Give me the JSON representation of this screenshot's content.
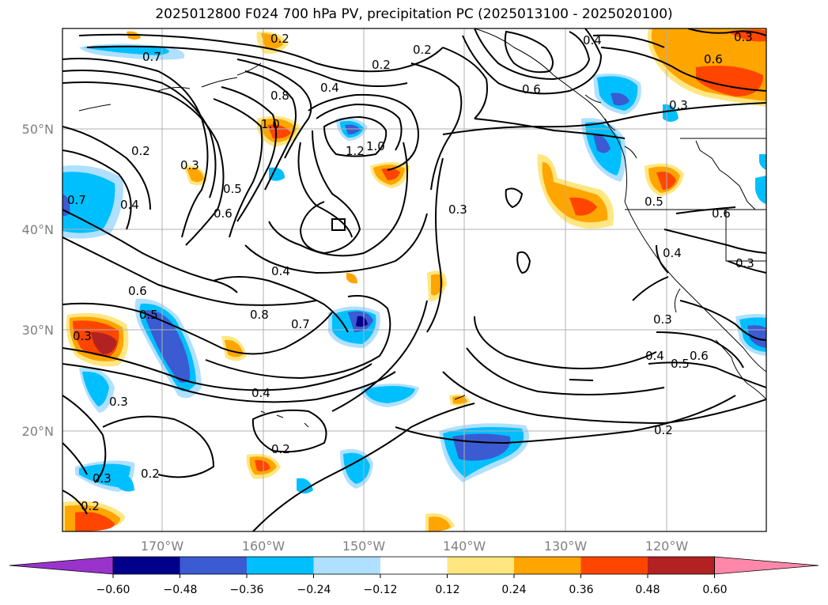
{
  "title": "2025012800 F024 700 hPa PV, precipitation PC (2025013100 - 2025020100)",
  "lat_ticks": [
    "50°N",
    "40°N",
    "30°N",
    "20°N"
  ],
  "lon_ticks": [
    "170°W",
    "160°W",
    "150°W",
    "140°W",
    "130°W",
    "120°W"
  ],
  "contour_labels": [
    "0.7",
    "0.2",
    "0.2",
    "0.4",
    "0.4",
    "0.8",
    "1.0",
    "1.2",
    "1.0",
    "0.2",
    "0.3",
    "0.5",
    "0.6",
    "0.4",
    "0.7",
    "0.3",
    "0.6",
    "0.5",
    "0.4",
    "0.8",
    "0.7",
    "0.6",
    "0.3",
    "0.4",
    "0.2",
    "0.3",
    "0.2",
    "0.2",
    "0.2",
    "0.3",
    "0.4",
    "0.5",
    "0.6",
    "0.3",
    "0.4",
    "0.5",
    "0.6",
    "0.3",
    "0.3",
    "0.3",
    "0.6",
    "0.2"
  ],
  "colorbar": {
    "ticks": [
      "−0.60",
      "−0.48",
      "−0.36",
      "−0.24",
      "−0.12",
      "0.12",
      "0.24",
      "0.36",
      "0.48",
      "0.60"
    ],
    "colors": [
      "#9933cc",
      "#00008b",
      "#3a5bd1",
      "#00bfff",
      "#b0e0ff",
      "#ffffff",
      "#ffe680",
      "#ffa500",
      "#ff4500",
      "#b22222",
      "#ff88aa"
    ]
  }
}
